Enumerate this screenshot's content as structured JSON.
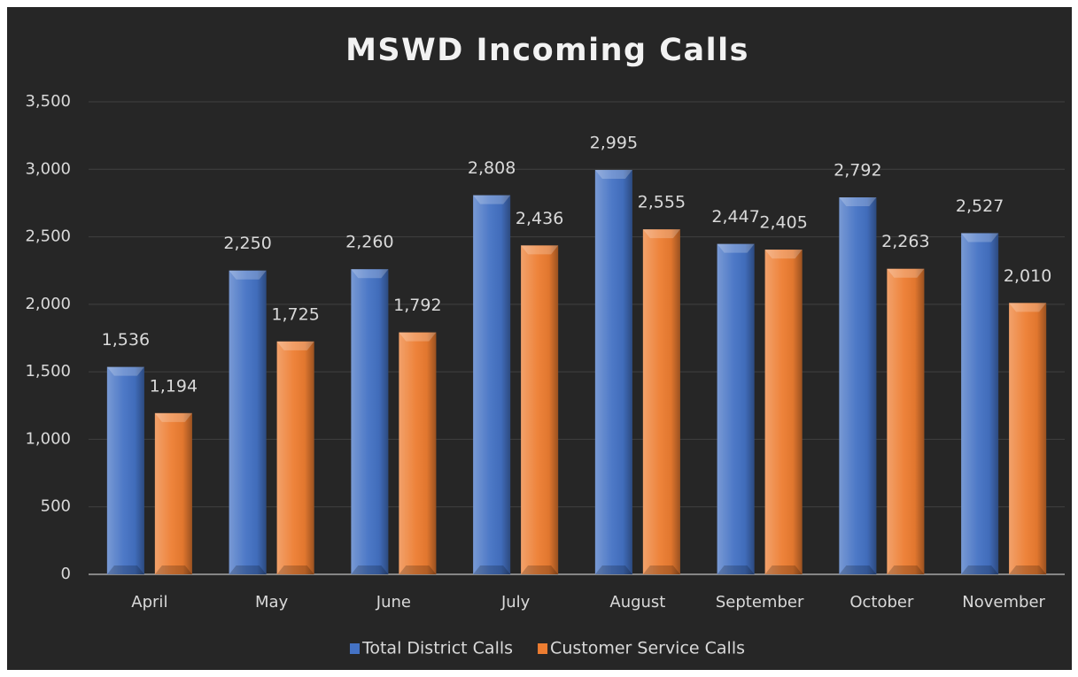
{
  "chart_data": {
    "type": "bar",
    "title": "MSWD Incoming Calls",
    "categories": [
      "April",
      "May",
      "June",
      "July",
      "August",
      "September",
      "October",
      "November"
    ],
    "series": [
      {
        "name": "Total District Calls",
        "color": "#4472c4",
        "values": [
          1536,
          2250,
          2260,
          2808,
          2995,
          2447,
          2792,
          2527
        ],
        "value_labels": [
          "1,536",
          "2,250",
          "2,260",
          "2,808",
          "2,995",
          "2,447",
          "2,792",
          "2,527"
        ]
      },
      {
        "name": "Customer Service Calls",
        "color": "#ed7d31",
        "values": [
          1194,
          1725,
          1792,
          2436,
          2555,
          2405,
          2263,
          2010
        ],
        "value_labels": [
          "1,194",
          "1,725",
          "1,792",
          "2,436",
          "2,555",
          "2,405",
          "2,263",
          "2,010"
        ]
      }
    ],
    "ylim": [
      0,
      3500
    ],
    "yticks": [
      0,
      500,
      {
        "value": 1000,
        "label": "1,000"
      },
      {
        "value": 1500,
        "label": "1,500"
      },
      {
        "value": 2000,
        "label": "2,000"
      },
      {
        "value": 2500,
        "label": "2,500"
      },
      {
        "value": 3000,
        "label": "3,000"
      },
      {
        "value": 3500,
        "label": "3,500"
      }
    ],
    "grid": true,
    "legend": "bottom"
  }
}
